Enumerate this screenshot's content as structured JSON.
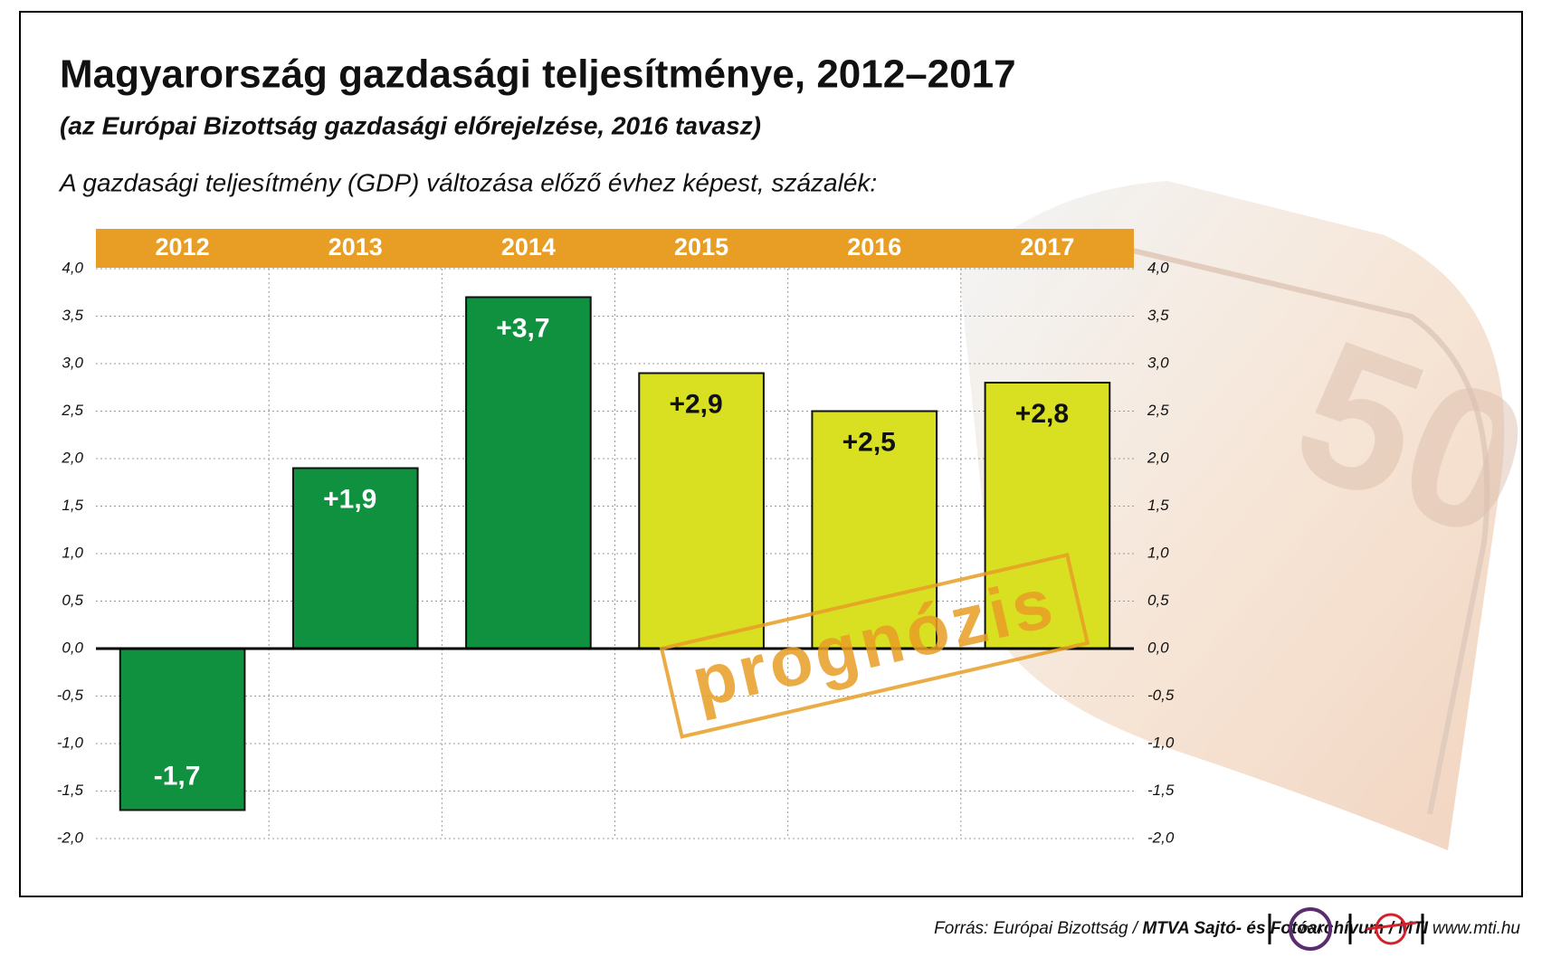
{
  "chart_data": {
    "type": "bar",
    "title": "Magyarország gazdasági teljesítménye, 2012–2017",
    "subtitle": "(az Európai Bizottság gazdasági előrejelzése, 2016 tavasz)",
    "y_label": "A gazdasági teljesítmény (GDP) változása előző évhez képest, százalék:",
    "categories": [
      "2012",
      "2013",
      "2014",
      "2015",
      "2016",
      "2017"
    ],
    "values": [
      -1.7,
      1.9,
      3.7,
      2.9,
      2.5,
      2.8
    ],
    "value_labels": [
      "-1,7",
      "+1,9",
      "+3,7",
      "+2,9",
      "+2,5",
      "+2,8"
    ],
    "colors": [
      "#0f9140",
      "#0f9140",
      "#0f9140",
      "#d8e021",
      "#d8e021",
      "#d8e021"
    ],
    "ylim": [
      -2,
      4
    ],
    "yticks": [
      {
        "value": -2,
        "label": "-2,0"
      },
      {
        "value": -1.5,
        "label": "-1,5"
      },
      {
        "value": -1,
        "label": "-1,0"
      },
      {
        "value": -0.5,
        "label": "-0,5"
      },
      {
        "value": 0,
        "label": "0,0"
      },
      {
        "value": 0.5,
        "label": "0,5"
      },
      {
        "value": 1,
        "label": "1,0"
      },
      {
        "value": 1.5,
        "label": "1,5"
      },
      {
        "value": 2,
        "label": "2,0"
      },
      {
        "value": 2.5,
        "label": "2,5"
      },
      {
        "value": 3,
        "label": "3,0"
      },
      {
        "value": 3.5,
        "label": "3,5"
      },
      {
        "value": 4,
        "label": "4,0"
      }
    ],
    "grid": true,
    "annotation": "prognózis",
    "source": "Forrás: Európai Bizottság / ",
    "source_bold": "MTVA Sajtó- és Fotóarchívum / MTI",
    "logo": "MTVA",
    "website": "www.mti.hu"
  }
}
